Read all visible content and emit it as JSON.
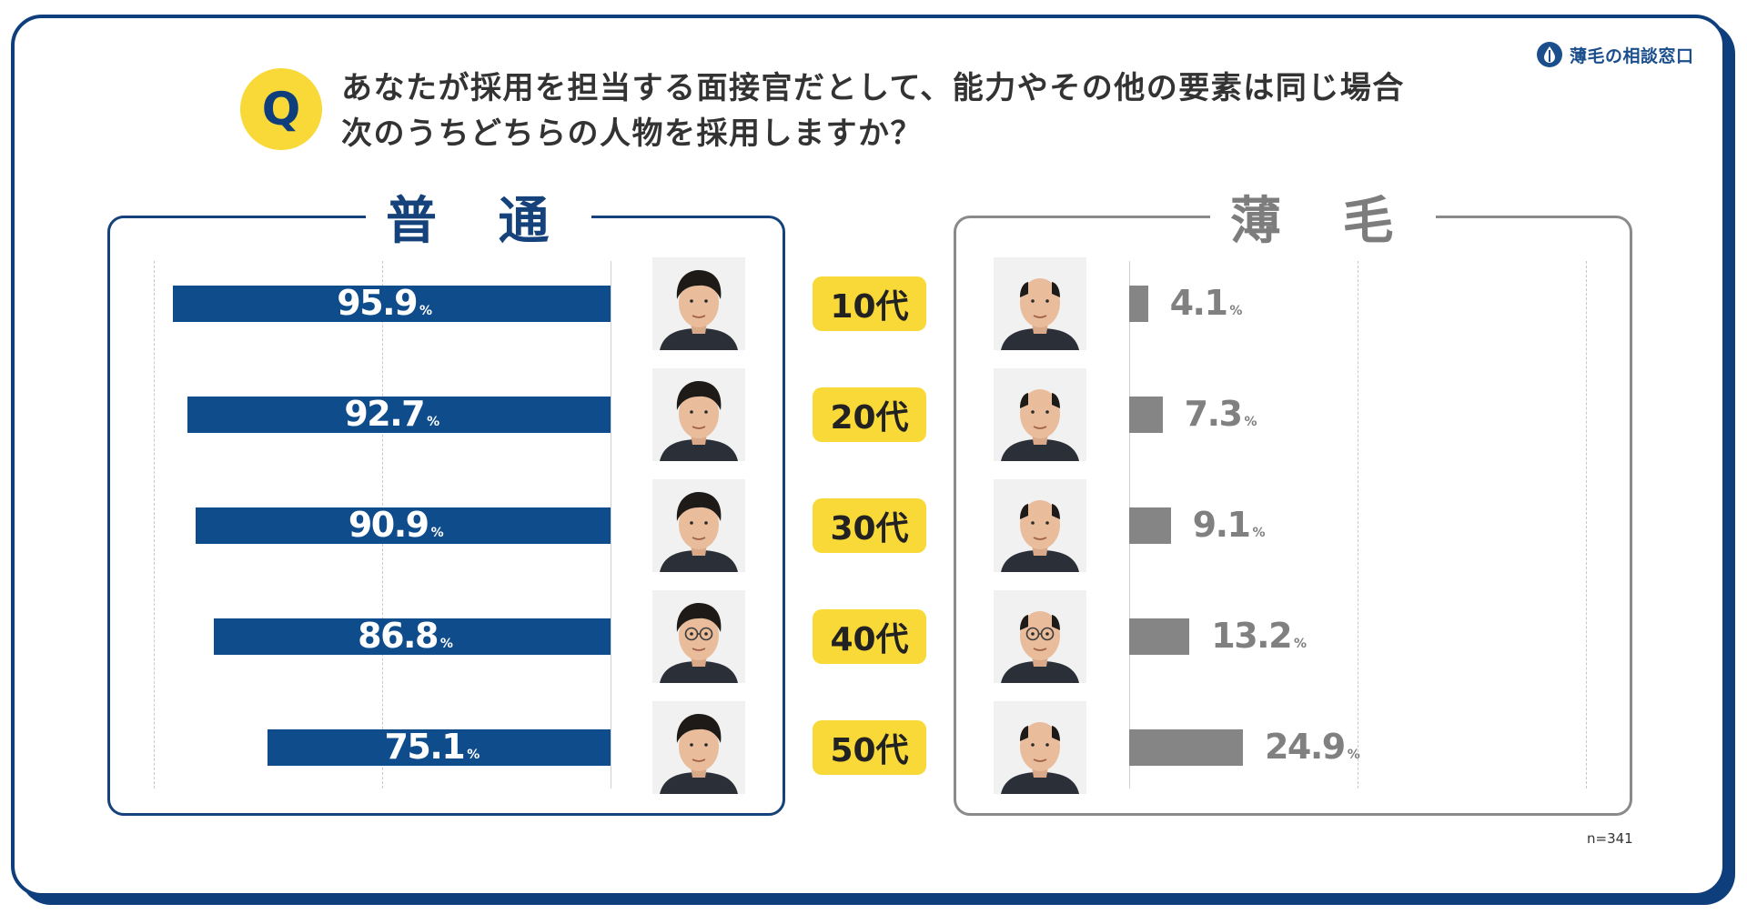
{
  "brand": {
    "name": "薄毛の相談窓口",
    "icon": "hair-droplet-logo-icon"
  },
  "question": {
    "badge": "Q",
    "line1": "あなたが採用を担当する面接官だとして、能力やその他の要素は同じ場合",
    "line2": "次のうちどちらの人物を採用しますか？"
  },
  "sample_size": "n=341",
  "colors": {
    "normal": "#0e4c8c",
    "thin": "#858585",
    "age_badge": "#f8d938",
    "frame": "#0e3f7c"
  },
  "chart_data": {
    "type": "bar",
    "orientation": "horizontal",
    "layout": "back-to-back",
    "categories": [
      "10代",
      "20代",
      "30代",
      "40代",
      "50代"
    ],
    "series": [
      {
        "name": "普 通",
        "values": [
          95.9,
          92.7,
          90.9,
          86.8,
          75.1
        ],
        "labels": [
          "95.9",
          "92.7",
          "90.9",
          "86.8",
          "75.1"
        ],
        "color": "#0e4c8c"
      },
      {
        "name": "薄 毛",
        "values": [
          4.1,
          7.3,
          9.1,
          13.2,
          24.9
        ],
        "labels": [
          "4.1",
          "7.3",
          "9.1",
          "13.2",
          "24.9"
        ],
        "color": "#858585"
      }
    ],
    "unit": "%",
    "xlim": [
      0,
      100
    ],
    "grid": true,
    "data_labels": true,
    "portraits": {
      "normal": [
        "man-portrait-icon",
        "man-portrait-icon",
        "man-portrait-icon",
        "man-glasses-portrait-icon",
        "man-portrait-icon"
      ],
      "thin": [
        "balding-man-portrait-icon",
        "balding-man-portrait-icon",
        "balding-man-portrait-icon",
        "balding-man-glasses-portrait-icon",
        "balding-man-portrait-icon"
      ]
    }
  }
}
